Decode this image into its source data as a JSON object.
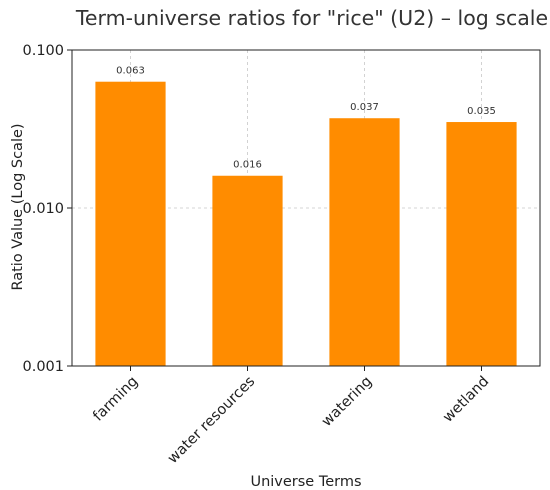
{
  "chart_data": {
    "type": "bar",
    "title": "Term-universe ratios for \"rice\" (U2) – log scale",
    "xlabel": "Universe Terms",
    "ylabel": "Ratio Value (Log Scale)",
    "y_scale": "log",
    "ylim": [
      0.001,
      0.1
    ],
    "yticks": [
      0.001,
      0.01,
      0.1
    ],
    "ytick_labels": [
      "0.001",
      "0.010",
      "0.100"
    ],
    "categories": [
      "farming",
      "water resources",
      "watering",
      "wetland"
    ],
    "values": [
      0.063,
      0.016,
      0.037,
      0.035
    ],
    "value_labels": [
      "0.063",
      "0.016",
      "0.037",
      "0.035"
    ],
    "bar_color": "#ff8c00",
    "grid": true
  }
}
